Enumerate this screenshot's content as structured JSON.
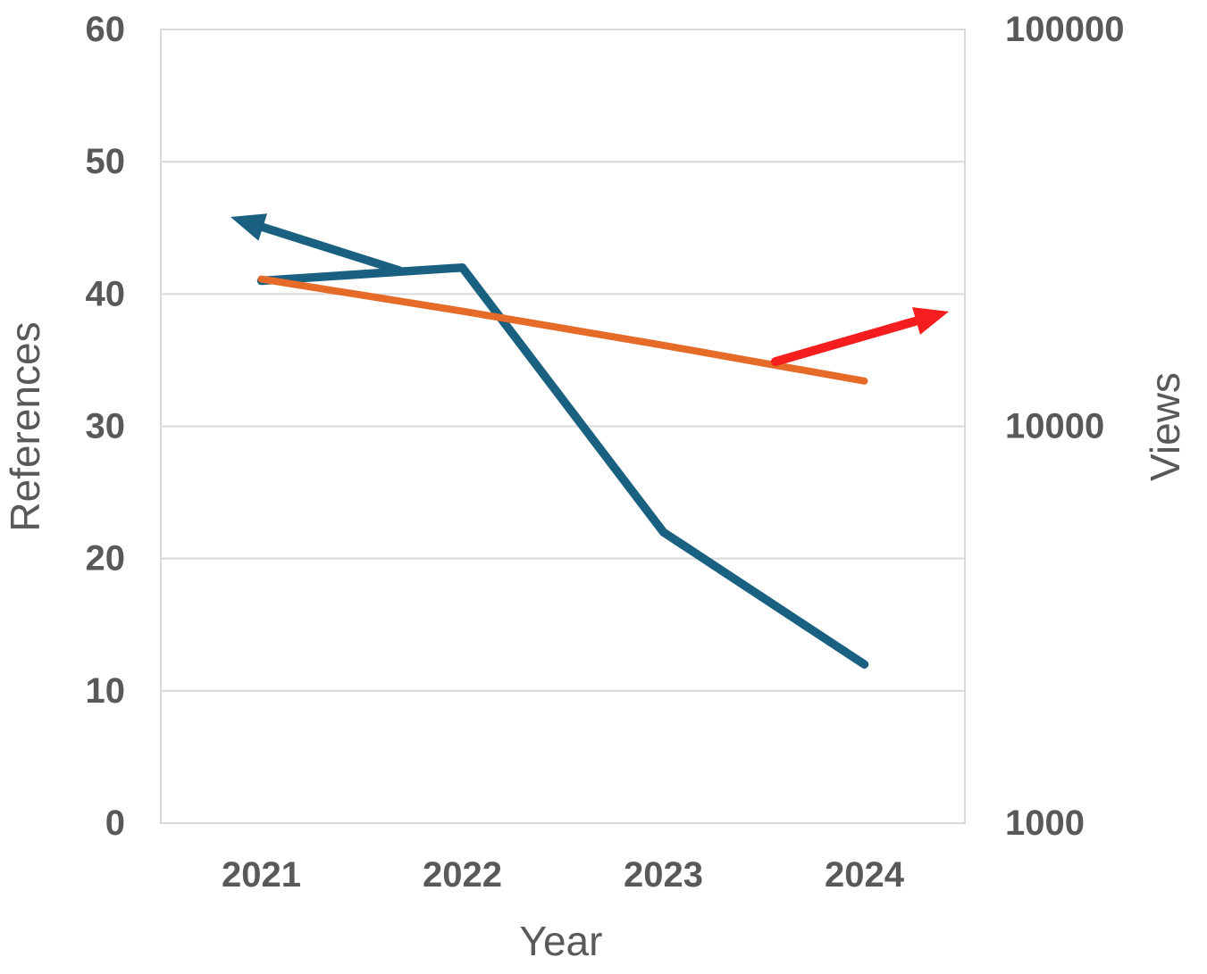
{
  "figure": {
    "background": "#ffffff"
  },
  "chart_data": {
    "type": "line",
    "title": "",
    "xlabel": "Year",
    "ylabel_left": "References",
    "ylabel_right": "Views",
    "categories": [
      "2021",
      "2022",
      "2023",
      "2024"
    ],
    "series": [
      {
        "name": "References",
        "axis": "left",
        "color": "#1a6080",
        "stroke_width": 9.5,
        "values": [
          41,
          42,
          22,
          12
        ]
      },
      {
        "name": "Views",
        "axis": "right",
        "color": "#e66a28",
        "stroke_width": 8,
        "values": [
          23500,
          19500,
          16000,
          13000
        ]
      }
    ],
    "axes": {
      "left": {
        "scale": "linear",
        "min": 0,
        "max": 60,
        "tick_labels": [
          "60",
          "50",
          "40",
          "30",
          "20",
          "10",
          "0"
        ],
        "tick_values": [
          60,
          50,
          40,
          30,
          20,
          10,
          0
        ]
      },
      "right": {
        "scale": "log",
        "min": 1000,
        "max": 100000,
        "tick_labels": [
          "100000",
          "10000",
          "1000"
        ],
        "tick_values": [
          100000,
          10000,
          1000
        ]
      }
    },
    "grid": "horizontal",
    "legend": "none",
    "annotations": [
      {
        "name": "left-axis-arrow",
        "description": "teal arrow pointing up-left toward References axis",
        "color": "#1a6080",
        "stroke_width": 9.5,
        "from": [
          447,
          303
        ],
        "to": [
          258,
          243
        ]
      },
      {
        "name": "right-axis-arrow",
        "description": "red arrow pointing up-right toward Views axis",
        "color": "#f51d1d",
        "stroke_width": 10,
        "from": [
          868,
          405
        ],
        "to": [
          1062,
          349
        ]
      }
    ],
    "colors": {
      "text": "#595959",
      "grid": "#d9d9d9",
      "plot_border": "#d9d9d9"
    }
  }
}
